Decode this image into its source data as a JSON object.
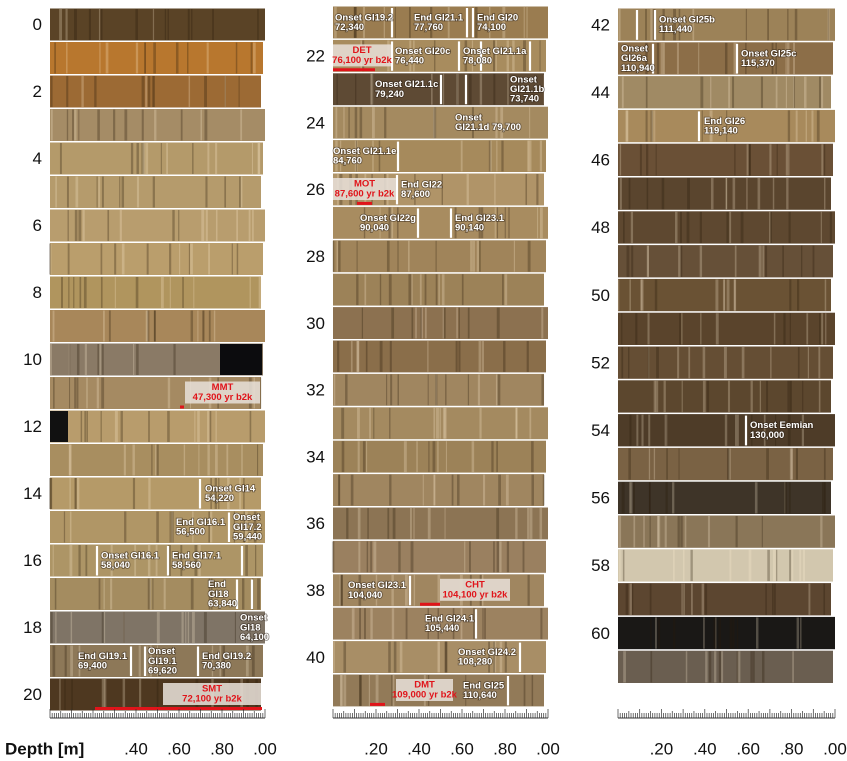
{
  "columns": [
    {
      "depth_labels": [
        0,
        2,
        4,
        6,
        8,
        10,
        12,
        14,
        16,
        18,
        20
      ]
    },
    {
      "depth_labels": [
        22,
        24,
        26,
        28,
        30,
        32,
        34,
        36,
        38,
        40
      ]
    },
    {
      "depth_labels": [
        42,
        44,
        46,
        48,
        50,
        52,
        54,
        56,
        58,
        60
      ]
    }
  ],
  "annotations": [
    {
      "lines": [
        "Onset GI14",
        "54,220"
      ]
    },
    {
      "lines": [
        "End GI16.1",
        "56,500"
      ]
    },
    {
      "lines": [
        "Onset",
        "GI17.2",
        "59,440"
      ]
    },
    {
      "lines": [
        "Onset GI16.1",
        "58,040"
      ]
    },
    {
      "lines": [
        "End GI17.1",
        "58,560"
      ]
    },
    {
      "lines": [
        "End",
        "GI18",
        "63,840"
      ]
    },
    {
      "lines": [
        "Onset",
        "GI18",
        "64,100"
      ]
    },
    {
      "lines": [
        "End GI19.1",
        "69,400"
      ]
    },
    {
      "lines": [
        "Onset",
        "GI19.1",
        "69,620"
      ]
    },
    {
      "lines": [
        "End GI19.2",
        "70,380"
      ]
    },
    {
      "lines": [
        "Onset GI19.2",
        "72,340"
      ]
    },
    {
      "lines": [
        "End GI21.1",
        "77,760"
      ]
    },
    {
      "lines": [
        "End GI20",
        "74,100"
      ]
    },
    {
      "lines": [
        "Onset GI20c",
        "76,440"
      ]
    },
    {
      "lines": [
        "Onset GI21.1a",
        "78,080"
      ]
    },
    {
      "lines": [
        "Onset GI21.1c",
        "79,240"
      ]
    },
    {
      "lines": [
        "Onset",
        "GI21.1b",
        "73,740"
      ]
    },
    {
      "lines": [
        "Onset",
        "GI21.1d 79,700"
      ]
    },
    {
      "lines": [
        "Onset GI21.1e",
        "84,760"
      ]
    },
    {
      "lines": [
        "End GI22",
        "87,600"
      ]
    },
    {
      "lines": [
        "Onset GI22g",
        "90,040"
      ]
    },
    {
      "lines": [
        "End GI23.1",
        "90,140"
      ]
    },
    {
      "lines": [
        "Onset GI23.1",
        "104,040"
      ]
    },
    {
      "lines": [
        "End GI24.1",
        "105,440"
      ]
    },
    {
      "lines": [
        "Onset GI24.2",
        "108,280"
      ]
    },
    {
      "lines": [
        "End GI25",
        "110,640"
      ]
    },
    {
      "lines": [
        "Onset GI25b",
        "111,440"
      ]
    },
    {
      "lines": [
        "Onset",
        "GI26a",
        "110,940"
      ]
    },
    {
      "lines": [
        "Onset GI25c",
        "115,370"
      ]
    },
    {
      "lines": [
        "End GI26",
        "119,140"
      ]
    },
    {
      "lines": [
        "Onset Eemian",
        "130,000"
      ]
    }
  ],
  "tephra": [
    {
      "lines": [
        "MMT",
        "47,300 yr b2k"
      ]
    },
    {
      "lines": [
        "SMT",
        "72,100 yr b2k"
      ]
    },
    {
      "lines": [
        "DET",
        "76,100 yr b2k"
      ]
    },
    {
      "lines": [
        "MOT",
        "87,600 yr b2k"
      ]
    },
    {
      "lines": [
        "CHT",
        "104,100 yr b2k"
      ]
    },
    {
      "lines": [
        "DMT",
        "109,000 yr b2k"
      ]
    }
  ],
  "scales": [
    {
      "title": "Depth [m]",
      "labels": [
        ".40",
        ".60",
        ".80",
        ".00"
      ]
    },
    {
      "labels": [
        ".20",
        ".40",
        ".60",
        ".80",
        ".00"
      ]
    },
    {
      "labels": [
        ".20",
        ".40",
        ".60",
        ".80",
        ".00"
      ]
    }
  ]
}
